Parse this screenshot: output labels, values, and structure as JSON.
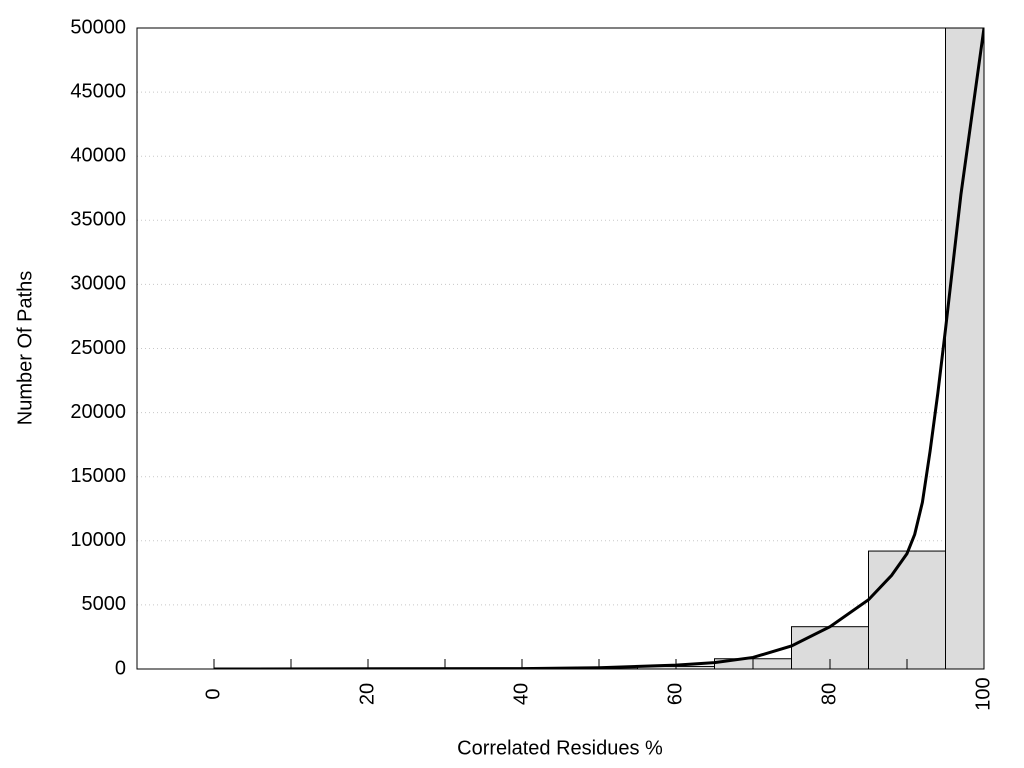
{
  "chart_data": {
    "type": "histogram",
    "x_label": "Correlated Residues %",
    "y_label": "Number Of Paths",
    "bins": [
      -5,
      5,
      15,
      25,
      35,
      45,
      55,
      65,
      75,
      85,
      95,
      105
    ],
    "values": [
      0,
      0,
      0,
      0,
      0,
      20,
      200,
      800,
      3300,
      9200,
      50000
    ],
    "color": "#dcdcdc",
    "curve": {
      "color": "#000000",
      "x": [
        0,
        40,
        50,
        60,
        65,
        70,
        75,
        80,
        85,
        88,
        90,
        91,
        92,
        93,
        94,
        95,
        97,
        100
      ],
      "values": [
        0,
        30,
        100,
        300,
        500,
        900,
        1800,
        3300,
        5400,
        7300,
        9000,
        10500,
        13000,
        17000,
        21500,
        26500,
        37000,
        50000
      ]
    },
    "xlim": [
      -10,
      100
    ],
    "ylim": [
      0,
      50000
    ],
    "xticks": [
      0,
      20,
      40,
      60,
      80,
      100
    ],
    "xminor_ticks": [
      10,
      30,
      50,
      70,
      90
    ],
    "yticks": [
      0,
      5000,
      10000,
      15000,
      20000,
      25000,
      30000,
      35000,
      40000,
      45000,
      50000
    ],
    "grid": true
  }
}
